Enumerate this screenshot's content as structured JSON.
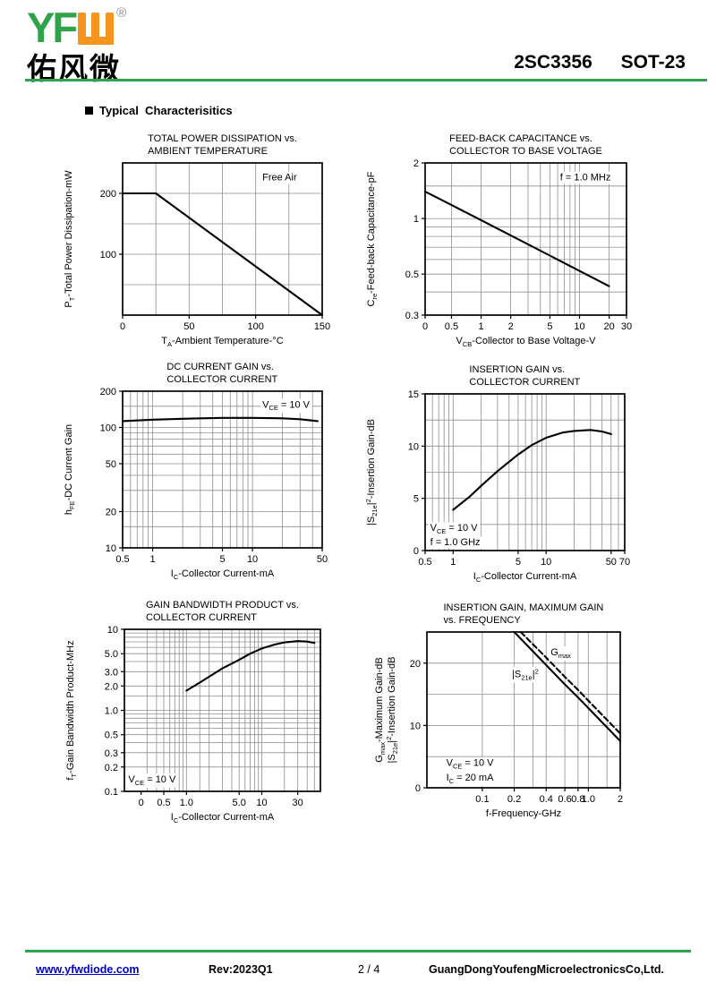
{
  "header": {
    "logo_latin": "YF",
    "logo_w_mark": "W",
    "logo_reg": "®",
    "logo_cn": "佑风微",
    "part_number": "2SC3356",
    "package": "SOT-23"
  },
  "section": {
    "title": "Typical  Characterisitics"
  },
  "footer": {
    "website": "www.yfwdiode.com",
    "revision": "Rev:2023Q1",
    "page": "2 / 4",
    "company": "GuangDongYoufengMicroelectronicsCo,Ltd."
  },
  "colors": {
    "brand_green": "#2fa24a",
    "brand_orange": "#f7941d",
    "link_blue": "#0000cd"
  },
  "chart_data": [
    {
      "type": "line",
      "title": [
        "TOTAL POWER DISSIPATION vs.",
        "AMBIENT TEMPERATURE"
      ],
      "xlabel": [
        {
          "t": "T"
        },
        {
          "t": "A",
          "sub": 1
        },
        {
          "t": "-Ambient Temperature-°C"
        }
      ],
      "ylabel": [
        [
          {
            "t": "P"
          },
          {
            "t": "T",
            "sub": 1
          },
          {
            "t": "-Total Power Dissipation-mW"
          }
        ]
      ],
      "x": {
        "scale": "linear",
        "min": 0,
        "max": 150,
        "ticks": [
          {
            "v": 0,
            "l": "0"
          },
          {
            "v": 50,
            "l": "50"
          },
          {
            "v": 100,
            "l": "100"
          },
          {
            "v": 150,
            "l": "150"
          }
        ],
        "grid": [
          25,
          50,
          75,
          100,
          125
        ]
      },
      "y": {
        "scale": "linear",
        "min": 0,
        "max": 250,
        "ticks": [
          {
            "v": 100,
            "l": "100"
          },
          {
            "v": 200,
            "l": "200"
          }
        ],
        "grid": [
          50,
          100,
          150,
          200
        ]
      },
      "series": [
        {
          "name": "PT",
          "dash": 0,
          "points": [
            [
              0,
              200
            ],
            [
              25,
              200
            ],
            [
              150,
              0
            ]
          ]
        }
      ],
      "annotations": [
        {
          "fx": 0.7,
          "fy": 0.115,
          "segs": [
            {
              "t": "Free Air"
            }
          ]
        }
      ]
    },
    {
      "type": "line",
      "title": [
        "FEED-BACK CAPACITANCE vs.",
        "COLLECTOR TO BASE VOLTAGE"
      ],
      "xlabel": [
        {
          "t": "V"
        },
        {
          "t": "CB",
          "sub": 1
        },
        {
          "t": "-Collector to Base Voltage-V"
        }
      ],
      "ylabel": [
        [
          {
            "t": "C"
          },
          {
            "t": "re",
            "sub": 1
          },
          {
            "t": "-Feed-back Capacitance-pF"
          }
        ]
      ],
      "x": {
        "scale": "log",
        "min": 0.27,
        "max": 30,
        "ticks": [
          {
            "v": 0.27,
            "l": "0"
          },
          {
            "v": 0.5,
            "l": "0.5"
          },
          {
            "v": 1,
            "l": "1"
          },
          {
            "v": 2,
            "l": "2"
          },
          {
            "v": 5,
            "l": "5"
          },
          {
            "v": 10,
            "l": "10"
          },
          {
            "v": 20,
            "l": "20"
          },
          {
            "v": 30,
            "l": "30"
          }
        ],
        "grid": [
          0.5,
          1,
          2,
          3,
          4,
          5,
          6,
          7,
          8,
          9,
          10,
          20
        ]
      },
      "y": {
        "scale": "log",
        "min": 0.3,
        "max": 2,
        "ticks": [
          {
            "v": 0.3,
            "l": "0.3"
          },
          {
            "v": 0.5,
            "l": "0.5"
          },
          {
            "v": 1,
            "l": "1"
          },
          {
            "v": 2,
            "l": "2"
          }
        ],
        "grid": [
          0.4,
          0.5,
          0.6,
          0.7,
          0.8,
          0.9,
          1,
          1.5
        ]
      },
      "series": [
        {
          "name": "Cre",
          "dash": 0,
          "points": [
            [
              0.27,
              1.4
            ],
            [
              1,
              0.98
            ],
            [
              5,
              0.63
            ],
            [
              20,
              0.43
            ]
          ]
        }
      ],
      "annotations": [
        {
          "fx": 0.67,
          "fy": 0.115,
          "segs": [
            {
              "t": "f = 1.0 MHz"
            }
          ]
        }
      ]
    },
    {
      "type": "line",
      "title": [
        "DC CURRENT GAIN vs.",
        "COLLECTOR CURRENT"
      ],
      "xlabel": [
        {
          "t": "I"
        },
        {
          "t": "C",
          "sub": 1
        },
        {
          "t": "-Collector Current-mA"
        }
      ],
      "ylabel": [
        [
          {
            "t": "h"
          },
          {
            "t": "FE",
            "sub": 1
          },
          {
            "t": "-DC Current Gain"
          }
        ]
      ],
      "x": {
        "scale": "log",
        "min": 0.5,
        "max": 50,
        "ticks": [
          {
            "v": 0.5,
            "l": "0.5"
          },
          {
            "v": 1,
            "l": "1"
          },
          {
            "v": 5,
            "l": "5"
          },
          {
            "v": 10,
            "l": "10"
          },
          {
            "v": 50,
            "l": "50"
          }
        ],
        "grid": [
          0.6,
          0.7,
          0.8,
          0.9,
          1,
          2,
          3,
          4,
          5,
          6,
          7,
          8,
          9,
          10,
          20,
          30,
          40
        ]
      },
      "y": {
        "scale": "log",
        "min": 10,
        "max": 200,
        "ticks": [
          {
            "v": 10,
            "l": "10"
          },
          {
            "v": 20,
            "l": "20"
          },
          {
            "v": 50,
            "l": "50"
          },
          {
            "v": 100,
            "l": "100"
          },
          {
            "v": 200,
            "l": "200"
          }
        ],
        "grid": [
          15,
          20,
          30,
          40,
          50,
          60,
          70,
          80,
          90,
          100,
          150
        ]
      },
      "series": [
        {
          "name": "hFE",
          "dash": 0,
          "points": [
            [
              0.5,
              113
            ],
            [
              1,
              116
            ],
            [
              2,
              118
            ],
            [
              3,
              119
            ],
            [
              5,
              120
            ],
            [
              10,
              120
            ],
            [
              15,
              119.5
            ],
            [
              20,
              119
            ],
            [
              30,
              117
            ],
            [
              45,
              113
            ]
          ]
        }
      ],
      "annotations": [
        {
          "fx": 0.7,
          "fy": 0.105,
          "segs": [
            {
              "t": "V"
            },
            {
              "t": "CE",
              "sub": 1
            },
            {
              "t": " = 10 V"
            }
          ]
        }
      ]
    },
    {
      "type": "line",
      "title": [
        "INSERTION GAIN vs.",
        "COLLECTOR CURRENT"
      ],
      "xlabel": [
        {
          "t": "I"
        },
        {
          "t": "C",
          "sub": 1
        },
        {
          "t": "-Collector Current-mA"
        }
      ],
      "ylabel": [
        [
          {
            "t": "|S"
          },
          {
            "t": "21e",
            "sub": 1
          },
          {
            "t": "|"
          },
          {
            "t": "2",
            "sup": 1
          },
          {
            "t": "-Insertion Gain-dB"
          }
        ]
      ],
      "x": {
        "scale": "log",
        "min": 0.5,
        "max": 70,
        "ticks": [
          {
            "v": 0.5,
            "l": "0.5"
          },
          {
            "v": 1,
            "l": "1"
          },
          {
            "v": 5,
            "l": "5"
          },
          {
            "v": 10,
            "l": "10"
          },
          {
            "v": 50,
            "l": "50"
          },
          {
            "v": 70,
            "l": "70"
          }
        ],
        "grid": [
          0.6,
          0.7,
          0.8,
          0.9,
          1,
          2,
          3,
          4,
          5,
          6,
          7,
          8,
          9,
          10,
          20,
          30,
          40,
          50,
          60
        ]
      },
      "y": {
        "scale": "linear",
        "min": 0,
        "max": 15,
        "ticks": [
          {
            "v": 0,
            "l": "0"
          },
          {
            "v": 5,
            "l": "5"
          },
          {
            "v": 10,
            "l": "10"
          },
          {
            "v": 15,
            "l": "15"
          }
        ],
        "grid": [
          2.5,
          5,
          7.5,
          10,
          12.5
        ]
      },
      "series": [
        {
          "name": "S21e2",
          "dash": 0,
          "points": [
            [
              1,
              3.9
            ],
            [
              1.5,
              5.15
            ],
            [
              2,
              6.2
            ],
            [
              3,
              7.6
            ],
            [
              5,
              9.2
            ],
            [
              7,
              10.1
            ],
            [
              10,
              10.8
            ],
            [
              15,
              11.3
            ],
            [
              20,
              11.45
            ],
            [
              30,
              11.55
            ],
            [
              40,
              11.4
            ],
            [
              50,
              11.15
            ]
          ]
        }
      ],
      "annotations": [
        {
          "fx": 0.025,
          "fy": 0.875,
          "segs": [
            {
              "t": "V"
            },
            {
              "t": "CE",
              "sub": 1
            },
            {
              "t": " = 10 V"
            }
          ]
        },
        {
          "fx": 0.025,
          "fy": 0.965,
          "segs": [
            {
              "t": "f = 1.0 GHz"
            }
          ]
        }
      ]
    },
    {
      "type": "line",
      "title": [
        "GAIN BANDWIDTH PRODUCT vs.",
        "COLLECTOR CURRENT"
      ],
      "xlabel": [
        {
          "t": "I"
        },
        {
          "t": "C",
          "sub": 1
        },
        {
          "t": "-Collector Current-mA"
        }
      ],
      "ylabel": [
        [
          {
            "t": "f"
          },
          {
            "t": "T",
            "sub": 1
          },
          {
            "t": "-Gain Bandwidth Product-MHz"
          }
        ]
      ],
      "x": {
        "scale": "log",
        "min": 0.15,
        "max": 60,
        "ticks": [
          {
            "v": 0.25,
            "l": "0"
          },
          {
            "v": 0.5,
            "l": "0.5"
          },
          {
            "v": 1,
            "l": "1.0"
          },
          {
            "v": 5,
            "l": "5.0"
          },
          {
            "v": 10,
            "l": "10"
          },
          {
            "v": 30,
            "l": "30"
          }
        ],
        "grid": [
          0.3,
          0.4,
          0.5,
          0.6,
          0.7,
          0.8,
          0.9,
          1,
          1.5,
          2,
          3,
          4,
          5,
          6,
          7,
          8,
          9,
          10,
          20,
          30,
          40,
          50
        ]
      },
      "y": {
        "scale": "log",
        "min": 0.1,
        "max": 10,
        "ticks": [
          {
            "v": 0.1,
            "l": "0.1"
          },
          {
            "v": 0.2,
            "l": "0.2"
          },
          {
            "v": 0.3,
            "l": "0.3"
          },
          {
            "v": 0.5,
            "l": "0.5"
          },
          {
            "v": 1,
            "l": "1.0"
          },
          {
            "v": 2,
            "l": "2.0"
          },
          {
            "v": 3,
            "l": "3.0"
          },
          {
            "v": 5,
            "l": "5.0"
          },
          {
            "v": 10,
            "l": "10"
          }
        ],
        "grid": [
          0.2,
          0.3,
          0.4,
          0.5,
          0.6,
          0.7,
          0.8,
          0.9,
          1,
          1.5,
          2,
          3,
          4,
          5,
          6,
          7,
          8,
          9
        ]
      },
      "series": [
        {
          "name": "fT",
          "dash": 0,
          "points": [
            [
              1,
              1.75
            ],
            [
              1.5,
              2.2
            ],
            [
              2,
              2.6
            ],
            [
              3,
              3.3
            ],
            [
              5,
              4.2
            ],
            [
              7,
              5.0
            ],
            [
              10,
              5.8
            ],
            [
              15,
              6.5
            ],
            [
              20,
              6.9
            ],
            [
              30,
              7.15
            ],
            [
              40,
              7.05
            ],
            [
              50,
              6.8
            ]
          ]
        }
      ],
      "annotations": [
        {
          "fx": 0.02,
          "fy": 0.945,
          "segs": [
            {
              "t": "V"
            },
            {
              "t": "CE",
              "sub": 1
            },
            {
              "t": " = 10 V"
            }
          ]
        }
      ]
    },
    {
      "type": "line",
      "title": [
        "INSERTION GAIN, MAXIMUM GAIN",
        "vs. FREQUENCY"
      ],
      "xlabel": [
        {
          "t": "f-Frequency-GHz"
        }
      ],
      "ylabel": [
        [
          {
            "t": "G"
          },
          {
            "t": "max",
            "sub": 1
          },
          {
            "t": "-Maximum Gain-dB"
          }
        ],
        [
          {
            "t": "|S"
          },
          {
            "t": "21e",
            "sub": 1
          },
          {
            "t": "|"
          },
          {
            "t": "2",
            "sup": 1
          },
          {
            "t": "-Insertion Gain-dB"
          }
        ]
      ],
      "x": {
        "scale": "log",
        "min": 0.03,
        "max": 2,
        "ticks": [
          {
            "v": 0.1,
            "l": "0.1"
          },
          {
            "v": 0.2,
            "l": "0.2"
          },
          {
            "v": 0.4,
            "l": "0.4"
          },
          {
            "v": 0.6,
            "l": "0.6"
          },
          {
            "v": 0.8,
            "l": "0.8"
          },
          {
            "v": 1,
            "l": "1.0"
          },
          {
            "v": 2,
            "l": "2"
          }
        ],
        "grid": [
          0.1,
          0.2,
          0.3,
          0.4,
          0.6,
          0.8,
          1,
          1.5
        ]
      },
      "y": {
        "scale": "linear",
        "min": 0,
        "max": 25,
        "ticks": [
          {
            "v": 0,
            "l": "0"
          },
          {
            "v": 10,
            "l": "10"
          },
          {
            "v": 20,
            "l": "20"
          }
        ],
        "grid": [
          5,
          10,
          15,
          20
        ]
      },
      "series": [
        {
          "name": "Gmax",
          "dash": 1,
          "points": [
            [
              0.23,
              25
            ],
            [
              0.4,
              20.9
            ],
            [
              0.6,
              17.8
            ],
            [
              0.8,
              15.7
            ],
            [
              1,
              14.0
            ],
            [
              1.5,
              10.9
            ],
            [
              2,
              8.7
            ]
          ]
        },
        {
          "name": "S21e2",
          "dash": 0,
          "points": [
            [
              0.2,
              25
            ],
            [
              0.4,
              19.7
            ],
            [
              0.6,
              16.6
            ],
            [
              0.8,
              14.5
            ],
            [
              1,
              12.8
            ],
            [
              1.5,
              9.7
            ],
            [
              2,
              7.5
            ]
          ]
        }
      ],
      "annotations": [
        {
          "fx": 0.64,
          "fy": 0.15,
          "segs": [
            {
              "t": "G"
            },
            {
              "t": "max",
              "sub": 1
            }
          ]
        },
        {
          "fx": 0.44,
          "fy": 0.29,
          "segs": [
            {
              "t": "|S"
            },
            {
              "t": "21e",
              "sub": 1
            },
            {
              "t": "|"
            },
            {
              "t": "2",
              "sup": 1
            }
          ]
        },
        {
          "fx": 0.1,
          "fy": 0.86,
          "segs": [
            {
              "t": "V"
            },
            {
              "t": "CE",
              "sub": 1
            },
            {
              "t": " = 10 V"
            }
          ]
        },
        {
          "fx": 0.1,
          "fy": 0.955,
          "segs": [
            {
              "t": "I"
            },
            {
              "t": "C",
              "sub": 1
            },
            {
              "t": " = 20 mA"
            }
          ]
        }
      ]
    }
  ]
}
